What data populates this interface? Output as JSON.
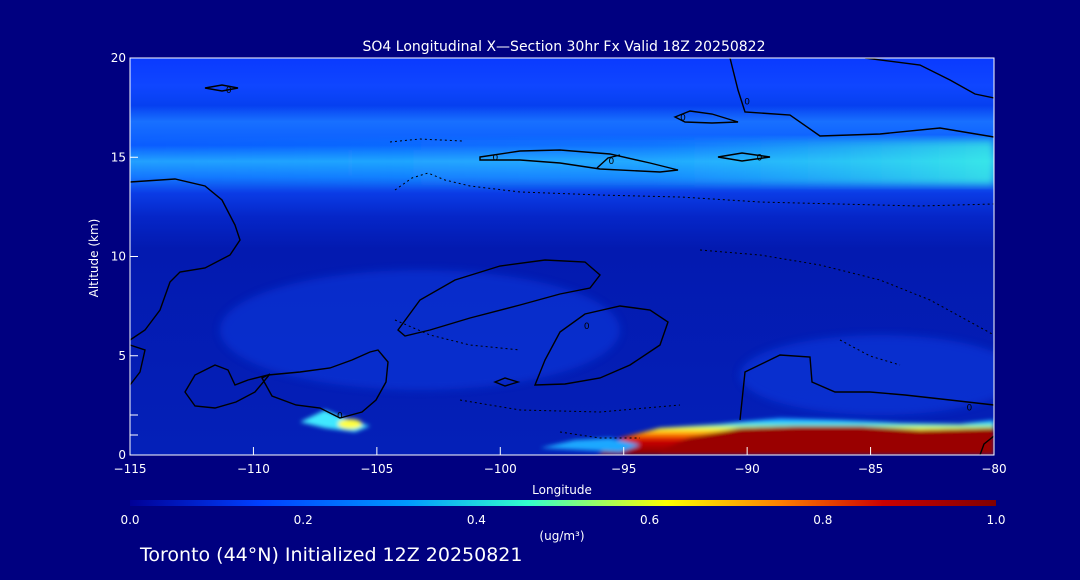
{
  "chart_data": {
    "type": "heatmap",
    "title": "SO4 Longitudinal X—Section 30hr  Fx Valid 18Z 20250822",
    "xlabel": "Longitude",
    "ylabel": "Altitude (km)",
    "xlim": [
      -115,
      -80
    ],
    "ylim": [
      0,
      20
    ],
    "x_ticks": [
      -115,
      -110,
      -105,
      -100,
      -95,
      -90,
      -85,
      -80
    ],
    "x_tick_labels": [
      "−115",
      "−110",
      "−105",
      "−100",
      "−95",
      "−90",
      "−85",
      "−80"
    ],
    "y_ticks": [
      0,
      5,
      10,
      15,
      20
    ],
    "y_tick_labels": [
      "0",
      "5",
      "10",
      "15",
      "20"
    ],
    "colorbar": {
      "min": 0.0,
      "max": 1.0,
      "ticks": [
        0.0,
        0.2,
        0.4,
        0.6,
        0.8,
        1.0
      ],
      "tick_labels": [
        "0.0",
        "0.2",
        "0.4",
        "0.6",
        "0.8",
        "1.0"
      ],
      "unit_label": "(ug/m³)",
      "colors": [
        "#000096",
        "#0033ff",
        "#0099ff",
        "#33ffcc",
        "#ffff00",
        "#ff8000",
        "#cc0000",
        "#800000"
      ]
    },
    "concentration_bands": [
      {
        "alt_range": [
          19,
          20
        ],
        "value": 0.1
      },
      {
        "alt_range": [
          17,
          18
        ],
        "value": 0.12
      },
      {
        "alt_range": [
          15.5,
          17
        ],
        "value": 0.2
      },
      {
        "alt_range": [
          14,
          15.5
        ],
        "value": 0.25
      },
      {
        "alt_range": [
          12,
          14
        ],
        "value": 0.08
      },
      {
        "alt_range": [
          0,
          12
        ],
        "value": 0.03
      }
    ],
    "hotspots": [
      {
        "lon_range": [
          -95,
          -80
        ],
        "alt_range": [
          0.1,
          1.6
        ],
        "value": 0.95
      },
      {
        "lon_range": [
          -108,
          -104
        ],
        "alt_range": [
          0.8,
          1.8
        ],
        "value": 0.45
      },
      {
        "lon_range": [
          -97,
          -94
        ],
        "alt_range": [
          0.2,
          0.8
        ],
        "value": 0.25
      }
    ],
    "contour_labels": [
      {
        "text": "0",
        "lon": -111,
        "alt": 18.4
      },
      {
        "text": "0",
        "lon": -92.6,
        "alt": 17.0
      },
      {
        "text": "0",
        "lon": -90,
        "alt": 17.8
      },
      {
        "text": "0",
        "lon": -100.2,
        "alt": 15.0
      },
      {
        "text": "0",
        "lon": -95.5,
        "alt": 14.8
      },
      {
        "text": "0",
        "lon": -89.5,
        "alt": 15.0
      },
      {
        "text": "0",
        "lon": -96.5,
        "alt": 6.5
      },
      {
        "text": "0",
        "lon": -106.5,
        "alt": 2.0
      },
      {
        "text": "0",
        "lon": -81,
        "alt": 2.4
      }
    ],
    "footer": "Toronto (44°N) Initialized 12Z 20250821"
  }
}
